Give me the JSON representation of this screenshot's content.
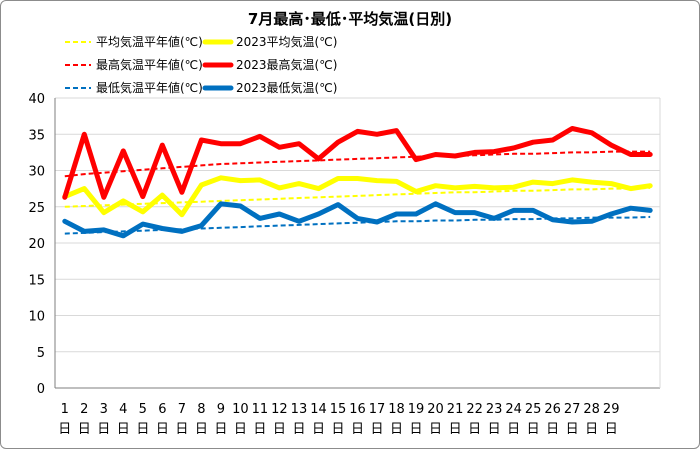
{
  "chart_data": {
    "type": "line",
    "title": "7月最高･最低･平均気温(日別)",
    "ylim": [
      0,
      40
    ],
    "yticks": [
      0,
      5,
      10,
      15,
      20,
      25,
      30,
      35,
      40
    ],
    "grid": true,
    "x": [
      "1",
      "2",
      "3",
      "4",
      "5",
      "6",
      "7",
      "8",
      "9",
      "10",
      "11",
      "12",
      "13",
      "14",
      "15",
      "16",
      "17",
      "18",
      "19",
      "20",
      "21",
      "22",
      "23",
      "24",
      "25",
      "26",
      "27",
      "28",
      "29",
      "30",
      "31"
    ],
    "xtick_labels": [
      "1",
      "2",
      "3",
      "4",
      "5",
      "6",
      "7",
      "8",
      "9",
      "10",
      "11",
      "12",
      "13",
      "14",
      "15",
      "16",
      "17",
      "18",
      "19",
      "20",
      "21",
      "22",
      "23",
      "24",
      "25",
      "26",
      "27",
      "28",
      "29",
      "",
      ""
    ],
    "xtick_suffix": "日",
    "legend_placement": "top-left",
    "legend": [
      [
        "平均気温平年値(℃)",
        "2023平均気温(℃)"
      ],
      [
        "最高気温平年値(℃)",
        "2023最高気温(℃)"
      ],
      [
        "最低気温平年値(℃)",
        "2023最低気温(℃)"
      ]
    ],
    "series": [
      {
        "name": "平均気温平年値(℃)",
        "color": "#ffff00",
        "style": "dashed",
        "values": [
          25.0,
          25.1,
          25.2,
          25.3,
          25.4,
          25.5,
          25.6,
          25.7,
          25.8,
          25.9,
          26.0,
          26.1,
          26.2,
          26.3,
          26.4,
          26.5,
          26.6,
          26.7,
          26.8,
          26.9,
          27.0,
          27.0,
          27.1,
          27.2,
          27.2,
          27.3,
          27.4,
          27.4,
          27.5,
          27.5,
          27.6
        ]
      },
      {
        "name": "2023平均気温(℃)",
        "color": "#ffff00",
        "style": "solid",
        "values": [
          26.4,
          27.5,
          24.2,
          25.8,
          24.3,
          26.6,
          23.9,
          28.0,
          29.0,
          28.6,
          28.7,
          27.6,
          28.2,
          27.5,
          28.9,
          28.9,
          28.6,
          28.5,
          27.1,
          27.9,
          27.6,
          27.8,
          27.6,
          27.7,
          28.4,
          28.2,
          28.7,
          28.4,
          28.2,
          27.5,
          27.9
        ]
      },
      {
        "name": "最高気温平年値(℃)",
        "color": "#ff0000",
        "style": "dashed",
        "values": [
          29.2,
          29.5,
          29.7,
          29.9,
          30.1,
          30.3,
          30.5,
          30.7,
          30.9,
          31.0,
          31.1,
          31.2,
          31.3,
          31.4,
          31.5,
          31.6,
          31.7,
          31.8,
          31.9,
          32.0,
          32.0,
          32.1,
          32.2,
          32.3,
          32.3,
          32.4,
          32.5,
          32.5,
          32.6,
          32.6,
          32.6
        ]
      },
      {
        "name": "2023最高気温(℃)",
        "color": "#ff0000",
        "style": "solid",
        "values": [
          26.3,
          35.0,
          26.3,
          32.7,
          26.4,
          33.5,
          27.0,
          34.2,
          33.7,
          33.7,
          34.7,
          33.2,
          33.7,
          31.6,
          33.9,
          35.4,
          35.0,
          35.5,
          31.5,
          32.2,
          32.0,
          32.5,
          32.6,
          33.1,
          33.9,
          34.2,
          35.8,
          35.2,
          33.5,
          32.2,
          32.2
        ]
      },
      {
        "name": "最低気温平年値(℃)",
        "color": "#0070c0",
        "style": "dashed",
        "values": [
          21.3,
          21.4,
          21.5,
          21.6,
          21.7,
          21.8,
          21.9,
          22.0,
          22.1,
          22.2,
          22.3,
          22.4,
          22.5,
          22.6,
          22.7,
          22.8,
          22.9,
          23.0,
          23.0,
          23.1,
          23.1,
          23.2,
          23.2,
          23.3,
          23.3,
          23.4,
          23.4,
          23.5,
          23.5,
          23.5,
          23.6
        ]
      },
      {
        "name": "2023最低気温(℃)",
        "color": "#0070c0",
        "style": "solid",
        "values": [
          23.0,
          21.6,
          21.8,
          21.0,
          22.6,
          22.0,
          21.6,
          22.4,
          25.4,
          25.1,
          23.4,
          24.0,
          23.0,
          24.0,
          25.3,
          23.4,
          22.9,
          24.0,
          24.0,
          25.4,
          24.2,
          24.2,
          23.4,
          24.5,
          24.5,
          23.2,
          22.9,
          23.0,
          24.0,
          24.8,
          24.5
        ]
      }
    ]
  }
}
